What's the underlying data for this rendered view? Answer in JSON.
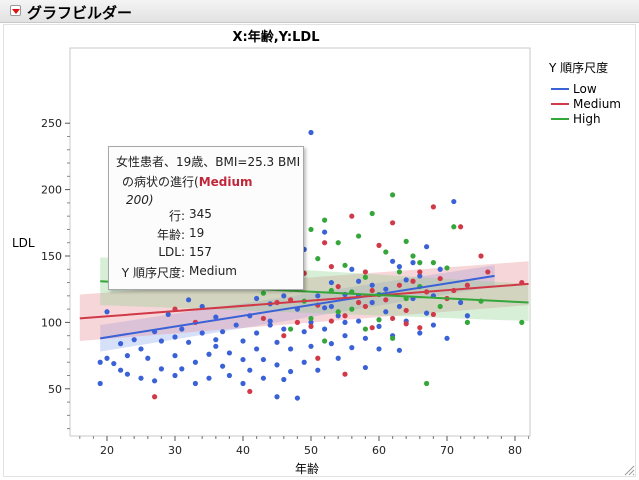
{
  "window": {
    "title": "グラフビルダー"
  },
  "chart_data": {
    "type": "scatter",
    "title": "X:年齢,Y:LDL",
    "xlabel": "年齢",
    "ylabel": "LDL",
    "xlim": [
      15,
      83
    ],
    "ylim": [
      35,
      250
    ],
    "x_ticks": [
      "20",
      "30",
      "40",
      "50",
      "60",
      "70",
      "80"
    ],
    "y_ticks": [
      "50",
      "100",
      "150",
      "200",
      "250"
    ],
    "grid": false,
    "legend_placement": "right",
    "legend_title": "Y 順序尺度",
    "series": [
      {
        "name": "Low",
        "color": "#3a62d6",
        "band_color": "#8aa6ee",
        "fit": {
          "x": [
            19,
            77
          ],
          "y": [
            88,
            135
          ],
          "lo": [
            78,
            127
          ],
          "hi": [
            98,
            143
          ]
        },
        "points": [
          [
            19,
            70
          ],
          [
            19,
            54
          ],
          [
            20,
            73
          ],
          [
            20,
            108
          ],
          [
            21,
            69
          ],
          [
            22,
            64
          ],
          [
            22,
            84
          ],
          [
            23,
            61
          ],
          [
            23,
            75
          ],
          [
            24,
            87
          ],
          [
            25,
            58
          ],
          [
            25,
            80
          ],
          [
            26,
            73
          ],
          [
            27,
            56
          ],
          [
            27,
            93
          ],
          [
            28,
            86
          ],
          [
            28,
            65
          ],
          [
            29,
            106
          ],
          [
            30,
            89
          ],
          [
            30,
            60
          ],
          [
            30,
            75
          ],
          [
            31,
            95
          ],
          [
            31,
            65
          ],
          [
            32,
            85
          ],
          [
            32,
            117
          ],
          [
            33,
            54
          ],
          [
            33,
            70
          ],
          [
            34,
            92
          ],
          [
            35,
            76
          ],
          [
            35,
            58
          ],
          [
            36,
            104
          ],
          [
            36,
            82
          ],
          [
            37,
            67
          ],
          [
            37,
            93
          ],
          [
            38,
            77
          ],
          [
            38,
            60
          ],
          [
            39,
            98
          ],
          [
            39,
            130
          ],
          [
            40,
            86
          ],
          [
            40,
            72
          ],
          [
            41,
            64
          ],
          [
            41,
            105
          ],
          [
            42,
            92
          ],
          [
            42,
            80
          ],
          [
            43,
            72
          ],
          [
            43,
            58
          ],
          [
            44,
            101
          ],
          [
            44,
            114
          ],
          [
            45,
            85
          ],
          [
            45,
            68
          ],
          [
            46,
            95
          ],
          [
            46,
            120
          ],
          [
            47,
            80
          ],
          [
            47,
            63
          ],
          [
            48,
            110
          ],
          [
            48,
            140
          ],
          [
            49,
            93
          ],
          [
            49,
            70
          ],
          [
            50,
            243
          ],
          [
            50,
            100
          ],
          [
            50,
            82
          ],
          [
            51,
            120
          ],
          [
            51,
            64
          ],
          [
            52,
            111
          ],
          [
            52,
            95
          ],
          [
            53,
            84
          ],
          [
            53,
            130
          ],
          [
            54,
            73
          ],
          [
            54,
            105
          ],
          [
            55,
            121
          ],
          [
            55,
            90
          ],
          [
            56,
            140
          ],
          [
            56,
            81
          ],
          [
            57,
            101
          ],
          [
            57,
            120
          ],
          [
            58,
            88
          ],
          [
            58,
            66
          ],
          [
            59,
            115
          ],
          [
            59,
            128
          ],
          [
            60,
            97
          ],
          [
            60,
            80
          ],
          [
            61,
            125
          ],
          [
            61,
            108
          ],
          [
            62,
            90
          ],
          [
            62,
            146
          ],
          [
            63,
            112
          ],
          [
            63,
            79
          ],
          [
            64,
            101
          ],
          [
            64,
            132
          ],
          [
            65,
            145
          ],
          [
            65,
            118
          ],
          [
            66,
            92
          ],
          [
            66,
            135
          ],
          [
            67,
            107
          ],
          [
            67,
            157
          ],
          [
            68,
            120
          ],
          [
            68,
            98
          ],
          [
            69,
            140
          ],
          [
            70,
            88
          ],
          [
            71,
            191
          ],
          [
            72,
            115
          ],
          [
            73,
            105
          ],
          [
            48,
            43
          ],
          [
            46,
            57
          ],
          [
            45,
            44
          ],
          [
            55,
            100
          ],
          [
            53,
            112
          ],
          [
            49,
            155
          ],
          [
            52,
            168
          ],
          [
            57,
            131
          ],
          [
            63,
            142
          ],
          [
            44,
            98
          ],
          [
            40,
            54
          ],
          [
            42,
            118
          ],
          [
            36,
            87
          ],
          [
            34,
            112
          ]
        ]
      },
      {
        "name": "Medium",
        "color": "#d03a48",
        "band_color": "#e88a96",
        "fit": {
          "x": [
            16,
            82
          ],
          "y": [
            103,
            129
          ],
          "lo": [
            86,
            113
          ],
          "hi": [
            121,
            146
          ]
        },
        "points": [
          [
            27,
            44
          ],
          [
            30,
            110
          ],
          [
            33,
            100
          ],
          [
            38,
            135
          ],
          [
            41,
            48
          ],
          [
            44,
            150
          ],
          [
            45,
            115
          ],
          [
            47,
            125
          ],
          [
            48,
            100
          ],
          [
            49,
            137
          ],
          [
            50,
            97
          ],
          [
            51,
            113
          ],
          [
            52,
            160
          ],
          [
            53,
            101
          ],
          [
            54,
            127
          ],
          [
            55,
            105
          ],
          [
            56,
            180
          ],
          [
            57,
            115
          ],
          [
            58,
            138
          ],
          [
            59,
            96
          ],
          [
            60,
            158
          ],
          [
            61,
            117
          ],
          [
            62,
            103
          ],
          [
            63,
            128
          ],
          [
            64,
            109
          ],
          [
            65,
            131
          ],
          [
            66,
            96
          ],
          [
            67,
            123
          ],
          [
            68,
            106
          ],
          [
            69,
            133
          ],
          [
            70,
            118
          ],
          [
            72,
            172
          ],
          [
            73,
            128
          ],
          [
            75,
            150
          ],
          [
            76,
            138
          ],
          [
            81,
            130
          ],
          [
            46,
            90
          ],
          [
            53,
            142
          ],
          [
            58,
            112
          ],
          [
            62,
            175
          ],
          [
            66,
            138
          ],
          [
            59,
            124
          ],
          [
            55,
            61
          ],
          [
            43,
            103
          ],
          [
            51,
            73
          ],
          [
            64,
            99
          ],
          [
            68,
            187
          ],
          [
            71,
            124
          ],
          [
            47,
            117
          ]
        ]
      },
      {
        "name": "High",
        "color": "#34a63a",
        "band_color": "#8ed08c",
        "fit": {
          "x": [
            19,
            82
          ],
          "y": [
            131,
            115
          ],
          "lo": [
            113,
            101
          ],
          "hi": [
            149,
            129
          ]
        },
        "points": [
          [
            36,
            200
          ],
          [
            37,
            185
          ],
          [
            38,
            215
          ],
          [
            39,
            148
          ],
          [
            40,
            164
          ],
          [
            41,
            130
          ],
          [
            42,
            175
          ],
          [
            43,
            122
          ],
          [
            44,
            154
          ],
          [
            45,
            142
          ],
          [
            46,
            187
          ],
          [
            47,
            160
          ],
          [
            48,
            134
          ],
          [
            49,
            116
          ],
          [
            50,
            170
          ],
          [
            51,
            148
          ],
          [
            52,
            177
          ],
          [
            53,
            124
          ],
          [
            54,
            160
          ],
          [
            55,
            143
          ],
          [
            56,
            110
          ],
          [
            57,
            165
          ],
          [
            58,
            134
          ],
          [
            59,
            182
          ],
          [
            60,
            121
          ],
          [
            61,
            153
          ],
          [
            62,
            196
          ],
          [
            63,
            138
          ],
          [
            64,
            118
          ],
          [
            65,
            150
          ],
          [
            66,
            127
          ],
          [
            67,
            54
          ],
          [
            68,
            145
          ],
          [
            69,
            112
          ],
          [
            70,
            141
          ],
          [
            71,
            172
          ],
          [
            73,
            100
          ],
          [
            75,
            116
          ],
          [
            81,
            100
          ],
          [
            54,
            108
          ],
          [
            58,
            95
          ],
          [
            62,
            88
          ],
          [
            50,
            103
          ],
          [
            47,
            95
          ],
          [
            56,
            123
          ],
          [
            60,
            102
          ],
          [
            64,
            161
          ],
          [
            52,
            86
          ],
          [
            66,
            145
          ],
          [
            48,
            181
          ]
        ]
      }
    ],
    "tooltip": {
      "line1": "女性患者、19歳、BMI=25.3 BMI",
      "line2_prefix": "の病状の進行(",
      "line2_highlight": "Medium",
      "line3": "200)",
      "rows": [
        {
          "label": "行:",
          "value": "345"
        },
        {
          "label": "年齢:",
          "value": "19"
        },
        {
          "label": "LDL:",
          "value": "157"
        },
        {
          "label": "Y 順序尺度:",
          "value": "Medium"
        }
      ]
    }
  }
}
